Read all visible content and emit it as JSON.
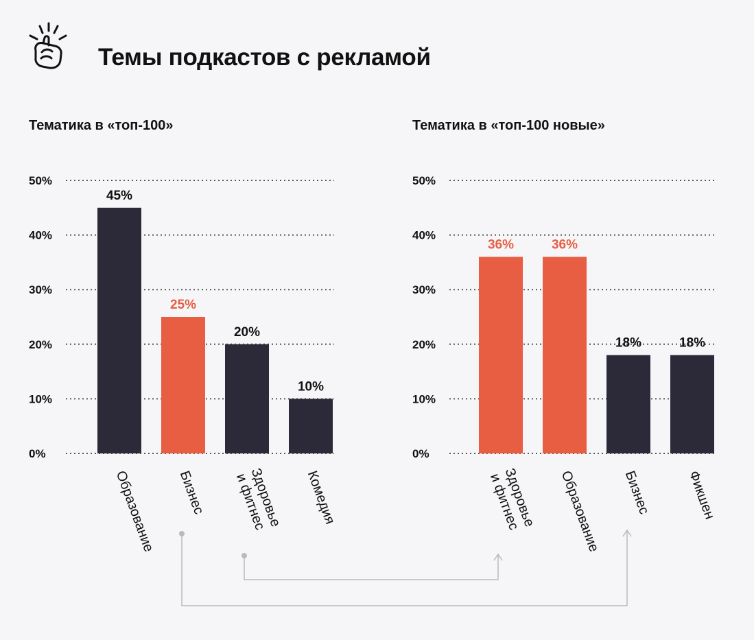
{
  "header": {
    "title": "Темы подкастов с рекламой",
    "logo_icon": "snapping-fingers-icon"
  },
  "colors": {
    "dark": "#2c2a38",
    "accent": "#e85e42",
    "background": "#f6f6f8",
    "connector": "#b9b9bf"
  },
  "chart_data": [
    {
      "type": "bar",
      "title": "Тематика в «топ-100»",
      "categories": [
        "Образование",
        "Бизнес",
        "Здоровье\nи фитнес",
        "Комедия"
      ],
      "values": [
        45,
        25,
        20,
        10
      ],
      "value_labels": [
        "45%",
        "25%",
        "20%",
        "10%"
      ],
      "highlight": [
        false,
        true,
        false,
        false
      ],
      "yticks": [
        "0%",
        "10%",
        "20%",
        "30%",
        "40%",
        "50%"
      ],
      "ylim": [
        0,
        50
      ],
      "grid": true
    },
    {
      "type": "bar",
      "title": "Тематика в «топ-100 новые»",
      "categories": [
        "Здоровье\nи фитнес",
        "Образование",
        "Бизнес",
        "Фикшен"
      ],
      "values": [
        36,
        36,
        18,
        18
      ],
      "value_labels": [
        "36%",
        "36%",
        "18%",
        "18%"
      ],
      "highlight": [
        true,
        true,
        false,
        false
      ],
      "yticks": [
        "0%",
        "10%",
        "20%",
        "30%",
        "40%",
        "50%"
      ],
      "ylim": [
        0,
        50
      ],
      "grid": true
    }
  ],
  "connectors": [
    {
      "from": "Бизнес",
      "to": "Бизнес"
    },
    {
      "from": "Здоровье и фитнес",
      "to": "Здоровье и фитнес"
    }
  ]
}
